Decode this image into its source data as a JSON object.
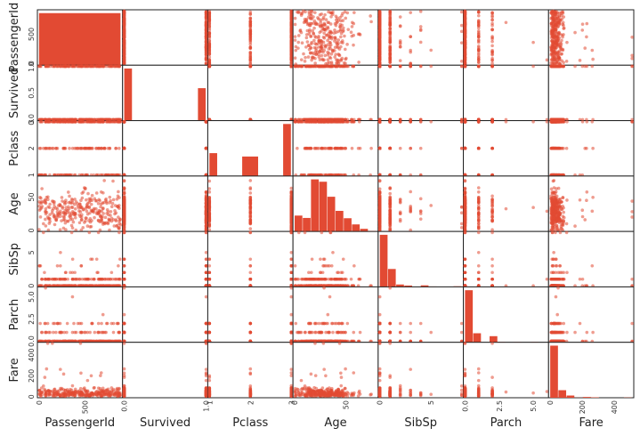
{
  "chart_data": {
    "type": "scatter_matrix",
    "variables": [
      "PassengerId",
      "Survived",
      "Pclass",
      "Age",
      "SibSp",
      "Parch",
      "Fare"
    ],
    "axis_labels": [
      "PassengerId",
      "Survived",
      "Pclass",
      "Age",
      "SibSp",
      "Parch",
      "Fare"
    ],
    "ranges": {
      "PassengerId": [
        0,
        891
      ],
      "Survived": [
        0,
        1
      ],
      "Pclass": [
        1,
        3
      ],
      "Age": [
        0,
        80
      ],
      "SibSp": [
        0,
        8
      ],
      "Parch": [
        0,
        6
      ],
      "Fare": [
        0,
        512
      ]
    },
    "y_ticks": {
      "PassengerId": [
        "0",
        "500"
      ],
      "Survived": [
        "0.0",
        "0.5",
        "1.0"
      ],
      "Pclass": [
        "1",
        "2",
        "3"
      ],
      "Age": [
        "0",
        "50"
      ],
      "SibSp": [
        "0",
        "5"
      ],
      "Parch": [
        "0.0",
        "2.5",
        "5.0"
      ],
      "Fare": [
        "0",
        "200",
        "400"
      ]
    },
    "x_ticks": {
      "PassengerId": [
        "0",
        "500"
      ],
      "Survived": [
        "0.0",
        "1.0"
      ],
      "Pclass": [
        "1",
        "2",
        "3"
      ],
      "Age": [
        "0",
        "50"
      ],
      "SibSp": [
        "0",
        "5"
      ],
      "Parch": [
        "0.0",
        "2.5",
        "5.0"
      ],
      "Fare": [
        "0",
        "200",
        "400"
      ]
    },
    "histograms": {
      "PassengerId": {
        "bins": [
          0,
          891
        ],
        "counts": [
          891
        ]
      },
      "Survived": {
        "bins": [
          0,
          0.1,
          0.9,
          1.0
        ],
        "counts": [
          549,
          0,
          342
        ]
      },
      "Pclass": {
        "bins": [
          1,
          1.2,
          1.8,
          2.2,
          2.8,
          3.0
        ],
        "counts": [
          216,
          0,
          184,
          0,
          491
        ]
      },
      "Age": {
        "bins": [
          0,
          8,
          16,
          24,
          32,
          40,
          48,
          56,
          64,
          72,
          80
        ],
        "counts": [
          54,
          46,
          177,
          169,
          118,
          70,
          45,
          24,
          9,
          2
        ]
      },
      "SibSp": {
        "bins": [
          0,
          0.8,
          1.6,
          2.4,
          3.2,
          4.0,
          4.8,
          5.6,
          6.4,
          7.2,
          8.0
        ],
        "counts": [
          608,
          209,
          28,
          16,
          0,
          18,
          5,
          0,
          0,
          7
        ]
      },
      "Parch": {
        "bins": [
          0,
          0.6,
          1.2,
          1.8,
          2.4,
          3.0,
          3.6,
          4.2,
          4.8,
          5.4,
          6.0
        ],
        "counts": [
          678,
          118,
          0,
          80,
          5,
          0,
          4,
          0,
          5,
          1
        ]
      },
      "Fare": {
        "bins": [
          0,
          51.2,
          102.4,
          153.6,
          204.8,
          256,
          307.2,
          358.4,
          409.6,
          460.8,
          512
        ],
        "counts": [
          732,
          106,
          31,
          2,
          11,
          6,
          0,
          0,
          0,
          3
        ]
      }
    },
    "colors": {
      "marker": "#e24a33",
      "frame": "#222222",
      "background": "#ffffff"
    },
    "grid": false
  }
}
